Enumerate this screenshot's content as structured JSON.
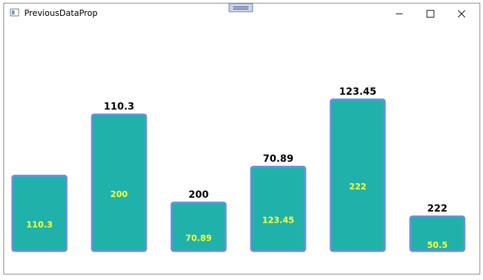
{
  "window": {
    "title": "PreviousDataProp"
  },
  "chart_data": {
    "type": "bar",
    "values": [
      110.3,
      200,
      70.89,
      123.45,
      222,
      50.5
    ],
    "previous_values": [
      null,
      110.3,
      200,
      70.89,
      123.45,
      222
    ],
    "color": "#20b2aa",
    "border_color": "#6a8fdc",
    "label_color": "#ffff33"
  }
}
